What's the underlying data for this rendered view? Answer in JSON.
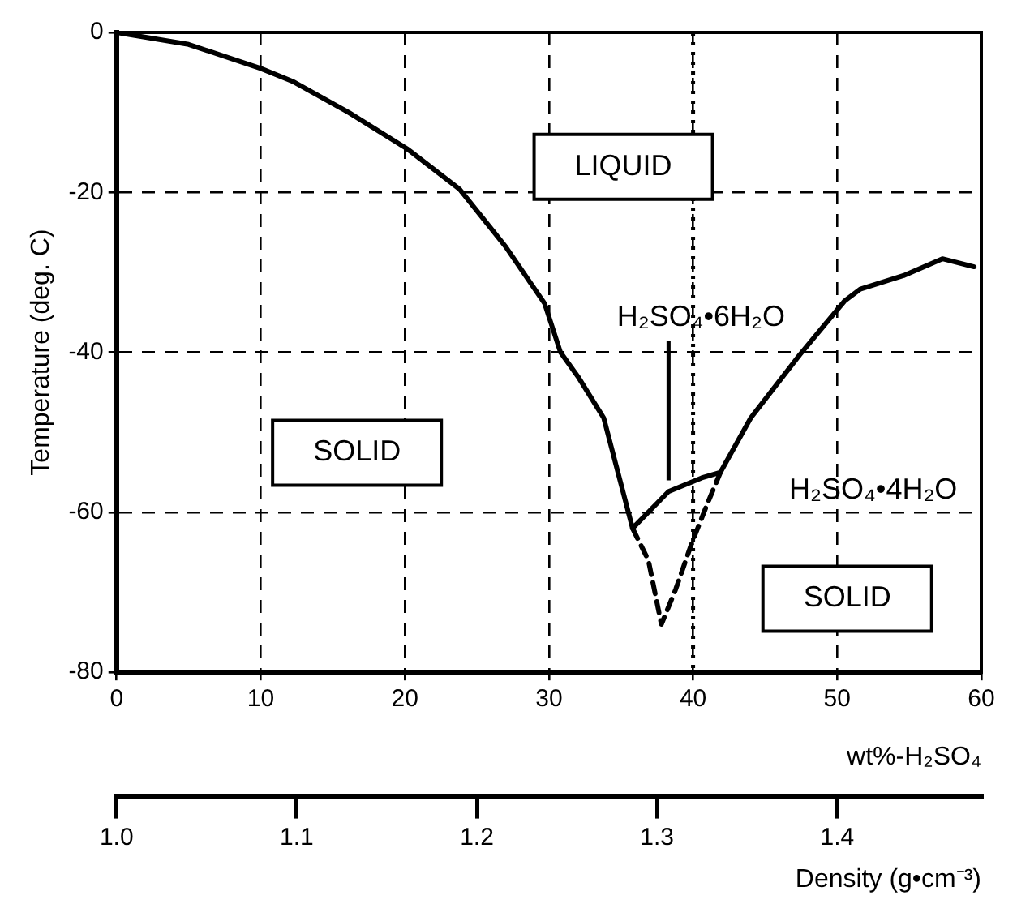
{
  "chart_data": {
    "type": "line",
    "xlabel": "wt%-H₂SO₄",
    "ylabel": "Temperature (deg. C)",
    "x2label": "Density (g•cm⁻³)",
    "xlim": [
      0,
      60
    ],
    "xticks": [
      0,
      10,
      20,
      30,
      40,
      50,
      60
    ],
    "ylim": [
      -80,
      0
    ],
    "yticks": [
      -80,
      -60,
      -40,
      -20,
      0
    ],
    "x2lim": [
      1.0,
      1.48
    ],
    "x2ticks": [
      {
        "value": 1,
        "label": "1.0"
      },
      1.1,
      1.2,
      1.3,
      1.4
    ],
    "grid": true,
    "marker": "none",
    "series": [
      {
        "color": "#000000",
        "line_style": "solid",
        "x": [
          0,
          5,
          10,
          12.2,
          16.1,
          20.2,
          23.8,
          27,
          29.7,
          30.8,
          32,
          33.8,
          35.8,
          38.3,
          40.6,
          41.9,
          44,
          47.4,
          50.5,
          51.6,
          54.6,
          57.3,
          59.5
        ],
        "values": [
          0,
          -1.5,
          -4.5,
          -6.1,
          -10,
          -14.6,
          -19.6,
          -26.8,
          -33.9,
          -40,
          -43,
          -48.2,
          -62,
          -57.4,
          -55.7,
          -55,
          -48.2,
          -40.3,
          -33.6,
          -32.1,
          -30.4,
          -28.3,
          -29.3
        ]
      },
      {
        "color": "#000000",
        "line_style": "dashed",
        "x": [
          35.8,
          36.9,
          37.8,
          38.8,
          39.9,
          41,
          41.9
        ],
        "values": [
          -62,
          -66,
          -74,
          -69.6,
          -63.9,
          -58.9,
          -55
        ]
      }
    ],
    "ref_lines": [
      {
        "axis": "x",
        "value": 40,
        "line_style": "dotted",
        "color": "#000000"
      }
    ],
    "annotations": [
      "LIQUID",
      "SOLID",
      "SOLID",
      {
        "text": "H₂SO₄•6H₂O",
        "x": 38.3,
        "y": -56
      },
      "H₂SO₄•4H₂O"
    ]
  }
}
